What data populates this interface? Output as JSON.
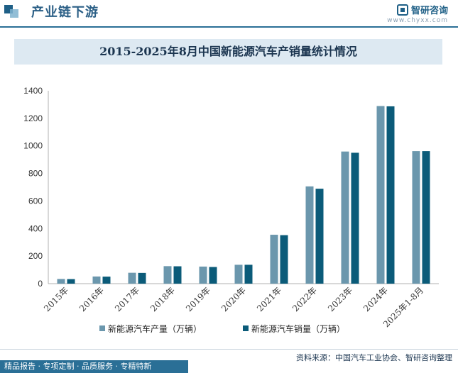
{
  "header": {
    "section_title": "产业链下游",
    "brand_name": "智研咨询",
    "brand_url": "www.chyxx.com"
  },
  "chart_data": {
    "type": "bar",
    "title": "2015-2025年8月中国新能源汽车产销量统计情况",
    "categories": [
      "2015年",
      "2016年",
      "2017年",
      "2018年",
      "2019年",
      "2020年",
      "2021年",
      "2022年",
      "2023年",
      "2024年",
      "2025年1-8月"
    ],
    "series": [
      {
        "name": "新能源汽车产量（万辆）",
        "color": "#6b97ad",
        "values": [
          34,
          52,
          79,
          127,
          124,
          137,
          355,
          706,
          959,
          1289,
          962
        ]
      },
      {
        "name": "新能源汽车销量（万辆）",
        "color": "#0b5b79",
        "values": [
          33,
          51,
          78,
          126,
          121,
          137,
          352,
          689,
          950,
          1287,
          962
        ]
      }
    ],
    "yticks": [
      "0",
      "200",
      "400",
      "600",
      "800",
      "1000",
      "1200",
      "1400"
    ],
    "ylim": [
      0,
      1400
    ],
    "grid": false,
    "legend_position": "bottom"
  },
  "footer": {
    "source": "资料来源：中国汽车工业协会、智研咨询整理",
    "services": "精品报告 · 专项定制 · 品质服务 · 专精特新"
  }
}
